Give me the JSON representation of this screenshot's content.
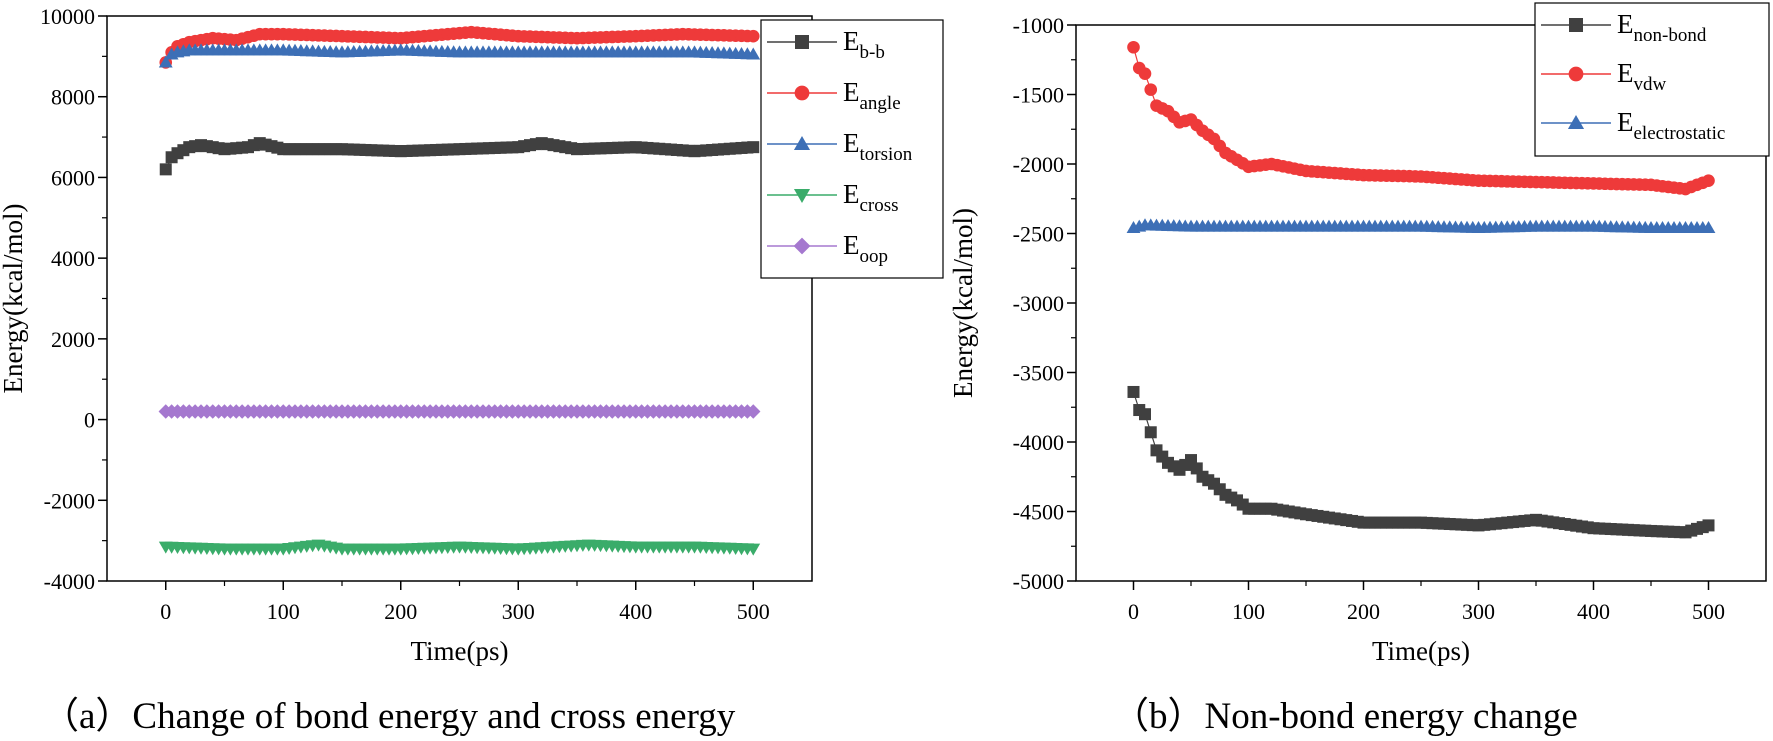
{
  "chart_data": [
    {
      "id": "a",
      "type": "line",
      "xlabel": "Time(ps)",
      "ylabel": "Energy(kcal/mol)",
      "xlim": [
        -50,
        550
      ],
      "ylim": [
        -4000,
        10000
      ],
      "xticks": [
        0,
        100,
        200,
        300,
        400,
        500
      ],
      "yticks": [
        -4000,
        -2000,
        0,
        2000,
        4000,
        6000,
        8000,
        10000
      ],
      "caption": "（a）Change of bond energy and cross energy",
      "series": [
        {
          "name": "E",
          "sub": "b-b",
          "color": "#404040",
          "marker": "square",
          "x": [
            0,
            5,
            10,
            20,
            30,
            40,
            50,
            70,
            80,
            100,
            150,
            200,
            250,
            300,
            320,
            350,
            400,
            450,
            500
          ],
          "y": [
            6200,
            6500,
            6600,
            6750,
            6800,
            6750,
            6700,
            6750,
            6850,
            6700,
            6700,
            6650,
            6700,
            6750,
            6850,
            6700,
            6750,
            6650,
            6750
          ]
        },
        {
          "name": "E",
          "sub": "angle",
          "color": "#ee3a3a",
          "marker": "circle",
          "x": [
            0,
            5,
            10,
            20,
            40,
            60,
            80,
            100,
            150,
            200,
            260,
            300,
            350,
            400,
            440,
            500
          ],
          "y": [
            8850,
            9100,
            9250,
            9350,
            9450,
            9400,
            9550,
            9550,
            9500,
            9450,
            9600,
            9500,
            9450,
            9500,
            9550,
            9500
          ]
        },
        {
          "name": "E",
          "sub": "torsion",
          "color": "#3d6fb6",
          "marker": "triangle-up",
          "x": [
            0,
            5,
            10,
            20,
            50,
            100,
            150,
            200,
            250,
            300,
            350,
            400,
            450,
            500
          ],
          "y": [
            8850,
            9050,
            9100,
            9150,
            9150,
            9150,
            9100,
            9150,
            9100,
            9100,
            9100,
            9100,
            9100,
            9050
          ]
        },
        {
          "name": "E",
          "sub": "cross",
          "color": "#3aac6a",
          "marker": "triangle-down",
          "x": [
            0,
            50,
            100,
            130,
            150,
            200,
            250,
            300,
            360,
            400,
            450,
            500
          ],
          "y": [
            -3150,
            -3200,
            -3200,
            -3100,
            -3200,
            -3200,
            -3150,
            -3200,
            -3100,
            -3150,
            -3150,
            -3200
          ]
        },
        {
          "name": "E",
          "sub": "oop",
          "color": "#a578cf",
          "marker": "diamond",
          "x": [
            0,
            100,
            200,
            300,
            400,
            500
          ],
          "y": [
            200,
            200,
            200,
            200,
            200,
            200
          ]
        }
      ]
    },
    {
      "id": "b",
      "type": "line",
      "xlabel": "Time(ps)",
      "ylabel": "Energy(kcal/mol)",
      "xlim": [
        -50,
        550
      ],
      "ylim": [
        -5000,
        -1000
      ],
      "xticks": [
        0,
        100,
        200,
        300,
        400,
        500
      ],
      "yticks": [
        -5000,
        -4500,
        -4000,
        -3500,
        -3000,
        -2500,
        -2000,
        -1500,
        -1000
      ],
      "caption": "（b）Non-bond energy change",
      "series": [
        {
          "name": "E",
          "sub": "non-bond",
          "color": "#404040",
          "marker": "square",
          "x": [
            0,
            5,
            10,
            20,
            30,
            40,
            50,
            60,
            70,
            80,
            90,
            100,
            120,
            150,
            200,
            250,
            300,
            350,
            400,
            450,
            480,
            500
          ],
          "y": [
            -3640,
            -3770,
            -3800,
            -4060,
            -4150,
            -4200,
            -4130,
            -4250,
            -4300,
            -4380,
            -4420,
            -4480,
            -4480,
            -4520,
            -4580,
            -4580,
            -4600,
            -4560,
            -4620,
            -4640,
            -4650,
            -4600
          ]
        },
        {
          "name": "E",
          "sub": "vdw",
          "color": "#ee3a3a",
          "marker": "circle",
          "x": [
            0,
            5,
            10,
            20,
            30,
            40,
            50,
            60,
            70,
            80,
            90,
            100,
            120,
            150,
            200,
            250,
            300,
            350,
            400,
            450,
            480,
            500
          ],
          "y": [
            -1160,
            -1310,
            -1350,
            -1580,
            -1620,
            -1700,
            -1680,
            -1760,
            -1820,
            -1920,
            -1970,
            -2020,
            -2000,
            -2050,
            -2080,
            -2090,
            -2120,
            -2130,
            -2140,
            -2150,
            -2180,
            -2120
          ]
        },
        {
          "name": "E",
          "sub": "electrostatic",
          "color": "#3d6fb6",
          "marker": "triangle-up",
          "x": [
            0,
            10,
            50,
            100,
            150,
            200,
            250,
            300,
            350,
            400,
            450,
            500
          ],
          "y": [
            -2460,
            -2440,
            -2450,
            -2450,
            -2450,
            -2450,
            -2450,
            -2460,
            -2450,
            -2450,
            -2460,
            -2460
          ]
        }
      ]
    }
  ]
}
